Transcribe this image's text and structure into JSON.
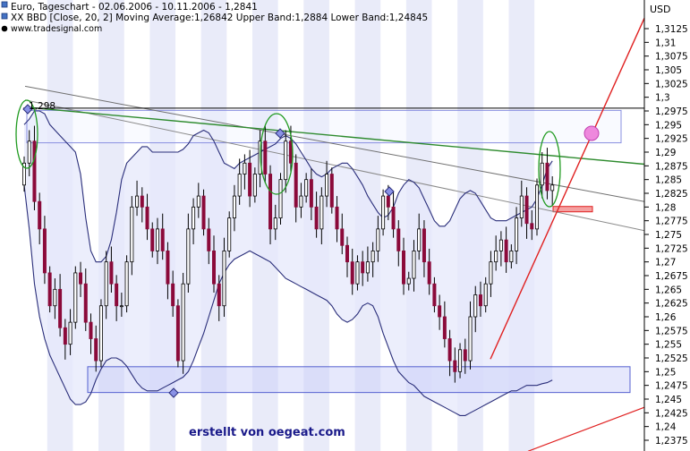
{
  "header": {
    "line1": "Euro, Tageschart - 02.06.2006 - 10.11.2006 - 1,2841",
    "line2": "XX BBD [Close, 20, 2] Moving Average:1,26842 Upper Band:1,2884 Lower Band:1,24845",
    "line3": "www.tradesignal.com"
  },
  "watermark": "erstellt von oegeat.com",
  "chart_data": {
    "type": "candlestick",
    "title": "Euro, Tageschart - 02.06.2006 - 10.11.2006 - 1,2841",
    "y_unit": "USD",
    "ylim": [
      1.236,
      1.3175
    ],
    "y_ticks": [
      "1,3125",
      "1,31",
      "1,3075",
      "1,305",
      "1,3025",
      "1,3",
      "1,2975",
      "1,295",
      "1,2925",
      "1,29",
      "1,2875",
      "1,285",
      "1,2825",
      "1,28",
      "1,2775",
      "1,275",
      "1,2725",
      "1,27",
      "1,2675",
      "1,265",
      "1,2625",
      "1,26",
      "1,2575",
      "1,255",
      "1,2525",
      "1,25",
      "1,2475",
      "1,245",
      "1,2425",
      "1,24",
      "1,2375"
    ],
    "x_range": [
      "02.06.2006",
      "10.11.2006"
    ],
    "last_close": 1.2841,
    "indicator": {
      "name": "XX BBD",
      "params": "Close, 20, 2",
      "moving_average": 1.26842,
      "upper_band": 1.2884,
      "lower_band": 1.24845
    },
    "annotation_high": "1,298",
    "closes": [
      1.288,
      1.292,
      1.281,
      1.276,
      1.268,
      1.262,
      1.265,
      1.258,
      1.255,
      1.259,
      1.268,
      1.266,
      1.259,
      1.256,
      1.252,
      1.262,
      1.27,
      1.266,
      1.262,
      1.262,
      1.27,
      1.28,
      1.282,
      1.28,
      1.276,
      1.272,
      1.276,
      1.272,
      1.266,
      1.262,
      1.252,
      1.266,
      1.276,
      1.28,
      1.282,
      1.276,
      1.272,
      1.266,
      1.262,
      1.272,
      1.278,
      1.282,
      1.286,
      1.288,
      1.282,
      1.286,
      1.292,
      1.286,
      1.276,
      1.278,
      1.285,
      1.292,
      1.288,
      1.28,
      1.282,
      1.285,
      1.28,
      1.276,
      1.282,
      1.286,
      1.28,
      1.276,
      1.273,
      1.27,
      1.266,
      1.27,
      1.268,
      1.27,
      1.272,
      1.276,
      1.282,
      1.28,
      1.276,
      1.272,
      1.266,
      1.267,
      1.272,
      1.276,
      1.27,
      1.266,
      1.262,
      1.26,
      1.256,
      1.252,
      1.25,
      1.254,
      1.252,
      1.26,
      1.264,
      1.262,
      1.266,
      1.27,
      1.272,
      1.274,
      1.27,
      1.272,
      1.278,
      1.282,
      1.277,
      1.276,
      1.284,
      1.288,
      1.283,
      1.284
    ],
    "band_upper": [
      1.295,
      1.296,
      1.2975,
      1.2975,
      1.297,
      1.295,
      1.294,
      1.293,
      1.292,
      1.291,
      1.29,
      1.286,
      1.278,
      1.272,
      1.27,
      1.27,
      1.271,
      1.274,
      1.279,
      1.285,
      1.288,
      1.289,
      1.29,
      1.291,
      1.291,
      1.29,
      1.29,
      1.29,
      1.29,
      1.29,
      1.29,
      1.2905,
      1.2915,
      1.293,
      1.2935,
      1.294,
      1.2935,
      1.292,
      1.29,
      1.288,
      1.2875,
      1.287,
      1.288,
      1.2885,
      1.289,
      1.2895,
      1.29,
      1.2905,
      1.291,
      1.2915,
      1.2925,
      1.293,
      1.2925,
      1.2915,
      1.29,
      1.2885,
      1.287,
      1.286,
      1.2855,
      1.286,
      1.287,
      1.2875,
      1.288,
      1.288,
      1.287,
      1.2855,
      1.284,
      1.282,
      1.2805,
      1.279,
      1.278,
      1.2785,
      1.28,
      1.2825,
      1.284,
      1.285,
      1.2845,
      1.2835,
      1.2815,
      1.2795,
      1.2775,
      1.2765,
      1.2765,
      1.2775,
      1.2795,
      1.2815,
      1.2825,
      1.283,
      1.2825,
      1.281,
      1.2795,
      1.278,
      1.2775,
      1.2775,
      1.2775,
      1.278,
      1.2785,
      1.279,
      1.2795,
      1.28,
      1.2815,
      1.284,
      1.287,
      1.2884
    ],
    "band_lower": [
      1.284,
      1.276,
      1.266,
      1.26,
      1.256,
      1.253,
      1.251,
      1.249,
      1.247,
      1.245,
      1.244,
      1.244,
      1.2445,
      1.246,
      1.2485,
      1.2505,
      1.252,
      1.2525,
      1.2525,
      1.252,
      1.251,
      1.2495,
      1.248,
      1.247,
      1.2465,
      1.2465,
      1.2465,
      1.247,
      1.2475,
      1.248,
      1.2485,
      1.249,
      1.25,
      1.252,
      1.2545,
      1.257,
      1.26,
      1.263,
      1.266,
      1.268,
      1.2695,
      1.2705,
      1.271,
      1.2715,
      1.272,
      1.2715,
      1.271,
      1.2705,
      1.27,
      1.269,
      1.268,
      1.267,
      1.2665,
      1.266,
      1.2655,
      1.265,
      1.2645,
      1.264,
      1.2635,
      1.263,
      1.262,
      1.2605,
      1.2595,
      1.259,
      1.2595,
      1.2605,
      1.262,
      1.2625,
      1.262,
      1.26,
      1.257,
      1.2545,
      1.252,
      1.25,
      1.249,
      1.248,
      1.2475,
      1.2465,
      1.2455,
      1.245,
      1.2445,
      1.244,
      1.2435,
      1.243,
      1.2425,
      1.242,
      1.242,
      1.2425,
      1.243,
      1.2435,
      1.244,
      1.2445,
      1.245,
      1.2455,
      1.246,
      1.2465,
      1.2465,
      1.247,
      1.2475,
      1.2475,
      1.2475,
      1.2478,
      1.248,
      1.24845
    ],
    "colors": {
      "up": "#000000",
      "down": "#8b0a3a",
      "bands": "#2a2e7a",
      "band_fill": "#e6e8fb",
      "green_trend": "#2e8b2e",
      "red_trend": "#e02020",
      "week_stripe": "#e9ebf9",
      "support_box": "#c8ccf8"
    }
  }
}
